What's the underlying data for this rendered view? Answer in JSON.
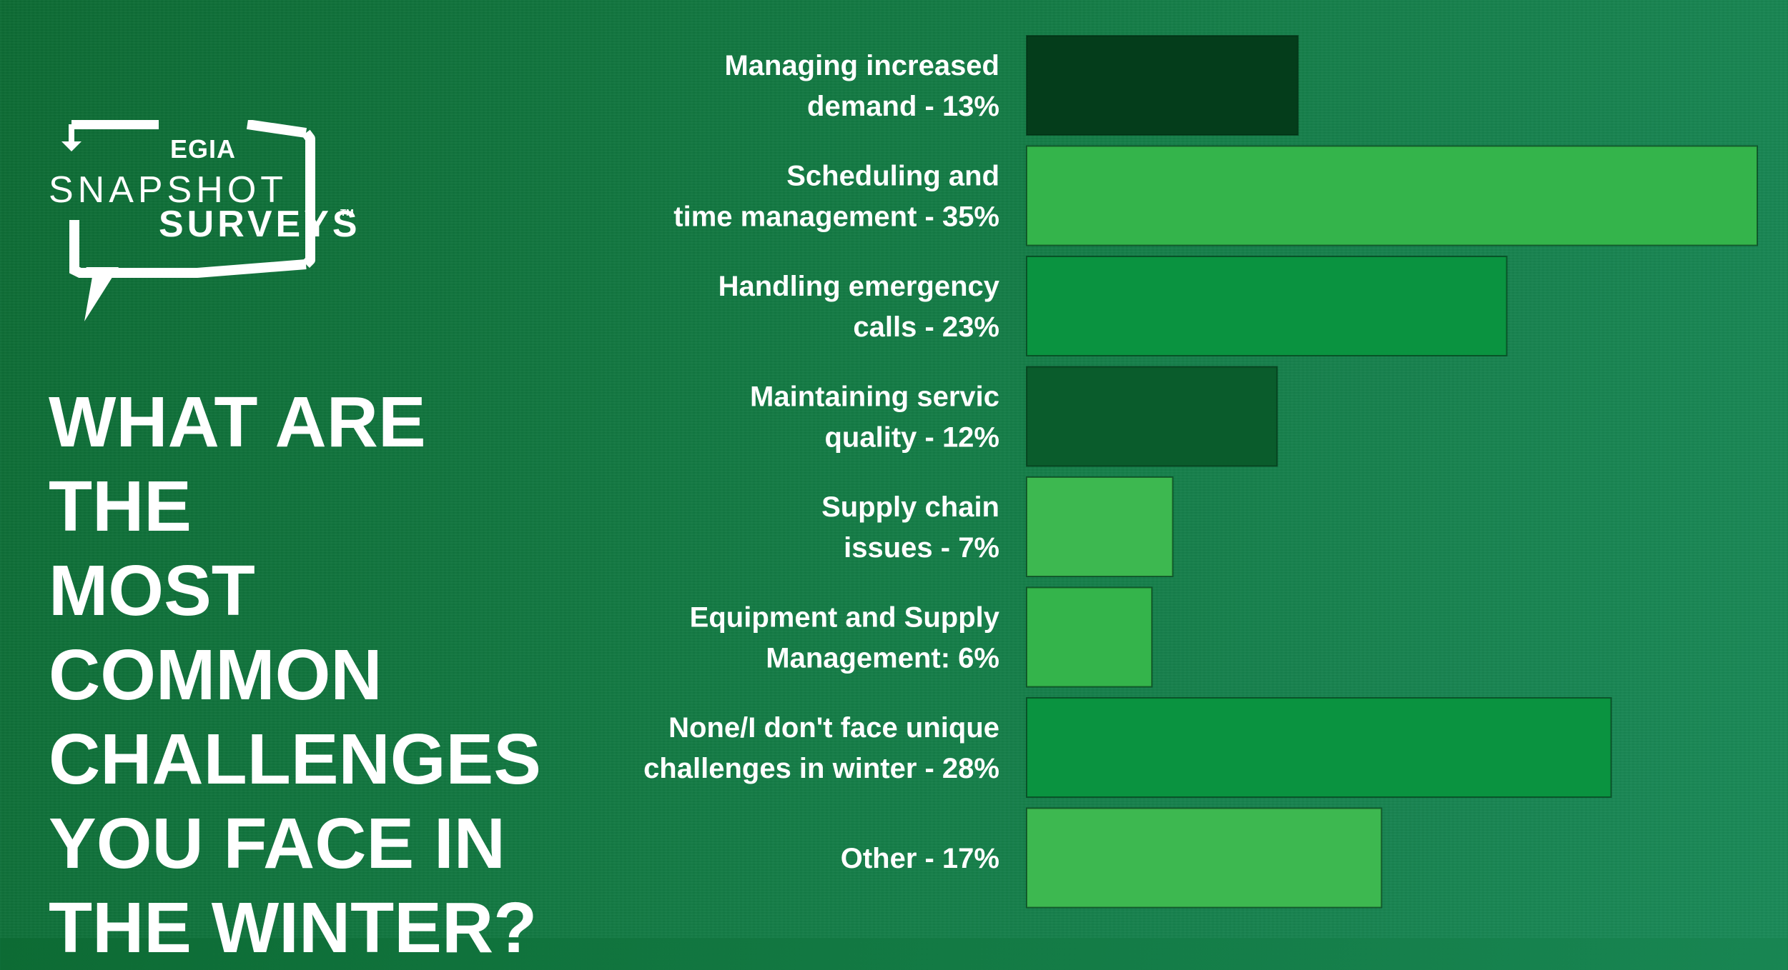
{
  "logo": {
    "brand": "EGIA",
    "line1": "SNAPSHOT",
    "line2": "SURVEYS",
    "trademark": "TM"
  },
  "question": {
    "lines": [
      "WHAT ARE THE",
      "MOST COMMON",
      "CHALLENGES",
      "YOU FACE IN",
      "THE WINTER?"
    ]
  },
  "colors": {
    "background": "#137a44",
    "bar_dark": "#043d1b",
    "bar_darkgreen": "#0a5c2c",
    "bar_mid": "#0a9340",
    "bar_light": "#34b44b",
    "bar_lighter": "#3db850",
    "text": "#ffffff"
  },
  "chart_data": {
    "type": "bar",
    "orientation": "horizontal",
    "title": "WHAT ARE THE MOST COMMON CHALLENGES YOU FACE IN THE WINTER?",
    "xlim": [
      0,
      35
    ],
    "grid": false,
    "legend": "none",
    "categories": [
      "Managing increased demand",
      "Scheduling and time management",
      "Handling emergency calls",
      "Maintaining servic quality",
      "Supply chain issues",
      "Equipment and Supply Management",
      "None/I don't face unique challenges in winter",
      "Other"
    ],
    "values": [
      13,
      35,
      23,
      12,
      7,
      6,
      28,
      17
    ],
    "labels": [
      [
        "Managing increased",
        "demand - 13%"
      ],
      [
        "Scheduling and",
        "time management - 35%"
      ],
      [
        "Handling emergency",
        "calls - 23%"
      ],
      [
        "Maintaining servic",
        "quality - 12%"
      ],
      [
        "Supply chain",
        "issues - 7%"
      ],
      [
        "Equipment and Supply",
        "Management: 6%"
      ],
      [
        "None/I don't face unique",
        "challenges in winter - 28%"
      ],
      [
        "Other - 17%"
      ]
    ],
    "bar_colors": [
      "#043d1b",
      "#34b44b",
      "#0a9340",
      "#0a5c2c",
      "#3db850",
      "#34b44b",
      "#0a9340",
      "#3db850"
    ]
  }
}
